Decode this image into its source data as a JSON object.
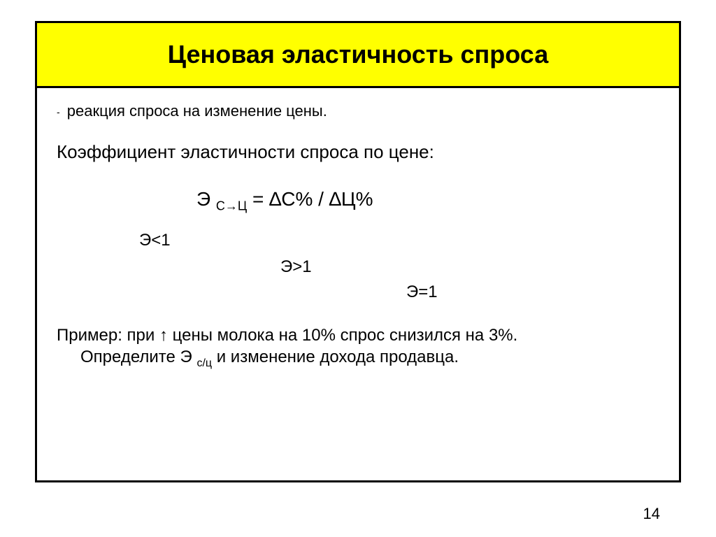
{
  "title": "Ценовая эластичность спроса",
  "line1_dash": "-",
  "line1": "реакция спроса на изменение цены.",
  "line2": "Коэффициент эластичности спроса по цене:",
  "formula_left": "Э ",
  "formula_sub": "С→Ц",
  "formula_right": " = ∆С% / ∆Ц%",
  "case1": "Э<1",
  "case2": "Э>1",
  "case3": "Э=1",
  "example_line1": "Пример: при ↑ цены молока на 10% спрос снизился на 3%.",
  "example_line2_a": "Определите Э ",
  "example_line2_sub": "с/ц",
  "example_line2_b": " и изменение дохода продавца.",
  "page_number": "14",
  "colors": {
    "title_bg": "#ffff00",
    "border": "#000000",
    "text": "#000000",
    "background": "#ffffff"
  }
}
